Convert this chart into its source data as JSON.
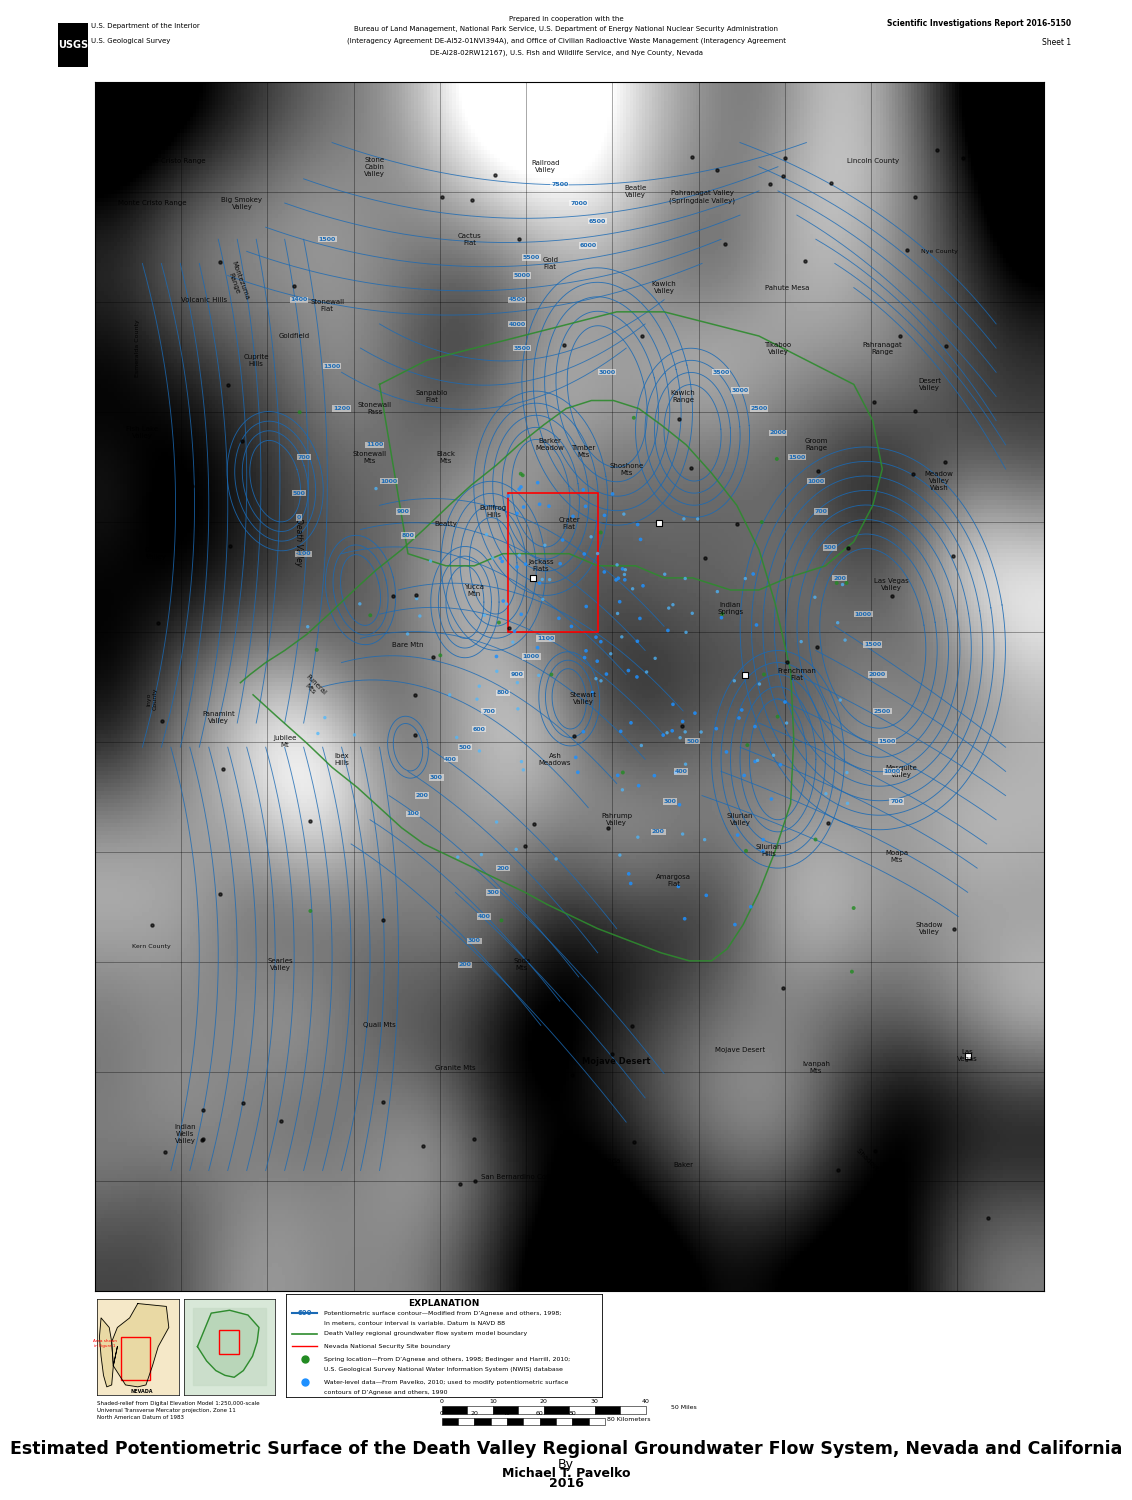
{
  "title_line1": "Estimated Potentiometric Surface of the Death Valley Regional Groundwater Flow System, Nevada and California",
  "title_line2": "By",
  "title_line3": "Michael T. Pavelko",
  "title_line4": "2016",
  "header_left_line1": "U.S. Department of the Interior",
  "header_left_line2": "U.S. Geological Survey",
  "header_center_line1": "Prepared in cooperation with the",
  "header_center_line2": "Bureau of Land Management, National Park Service, U.S. Department of Energy National Nuclear Security Administration",
  "header_center_line3": "(Interagency Agreement DE-AI52-01NVI394A), and Office of Civilian Radioactive Waste Management (Interagency Agreement",
  "header_center_line4": "DE-AI28-02RW12167), U.S. Fish and Wildlife Service, and Nye County, Nevada",
  "header_right_line1": "Scientific Investigations Report 2016-5150",
  "header_right_line2": "Sheet 1",
  "bg_color": "#ffffff",
  "map_light_gray": "#d8d8d8",
  "map_mid_gray": "#b8b8b8",
  "contour_blue": "#1a6ab5",
  "boundary_green": "#2e8b2e",
  "title_fontsize": 13,
  "header_fontsize": 6
}
